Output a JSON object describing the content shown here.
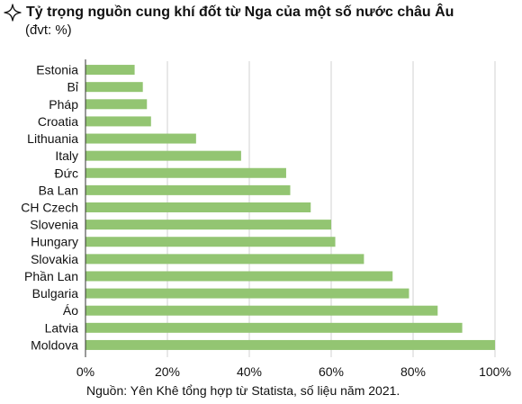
{
  "title": "Tỷ trọng nguồn cung khí đốt từ Nga của một số nước châu Âu",
  "subtitle": "(đvt: %)",
  "source": "Nguồn: Yên Khê tổng hợp từ Statista, số liệu năm 2021.",
  "title_icon": "sparkle-star-icon",
  "colors": {
    "bar": "#93c572",
    "grid": "#d0d0d0",
    "axis": "#333333"
  },
  "chart_data": {
    "type": "bar",
    "orientation": "horizontal",
    "title": "Tỷ trọng nguồn cung khí đốt từ Nga của một số nước châu Âu",
    "categories": [
      "Estonia",
      "Bỉ",
      "Pháp",
      "Croatia",
      "Lithuania",
      "Italy",
      "Đức",
      "Ba Lan",
      "CH Czech",
      "Slovenia",
      "Hungary",
      "Slovakia",
      "Phần Lan",
      "Bulgaria",
      "Áo",
      "Latvia",
      "Moldova"
    ],
    "values": [
      12,
      14,
      15,
      16,
      27,
      38,
      49,
      50,
      55,
      60,
      61,
      68,
      75,
      79,
      86,
      92,
      100
    ],
    "xlim": [
      0,
      100
    ],
    "xticks": [
      0,
      20,
      40,
      60,
      80,
      100
    ],
    "xtick_labels": [
      "0%",
      "20%",
      "40%",
      "60%",
      "80%",
      "100%"
    ],
    "xlabel": "",
    "ylabel": "",
    "grid": "vertical",
    "legend": "none"
  }
}
